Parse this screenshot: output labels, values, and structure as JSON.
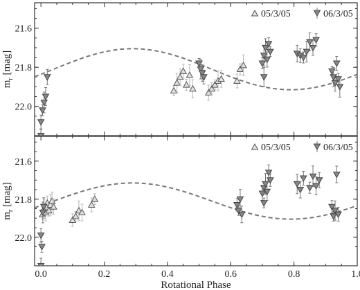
{
  "chart_data": [
    {
      "type": "scatter",
      "title": "",
      "xlabel": "",
      "ylabel": "m",
      "ylabel_sub": "r",
      "ylabel_unit": "[mag]",
      "xlim": [
        -0.02,
        1.0
      ],
      "ylim": [
        22.15,
        21.47
      ],
      "y_inverted": true,
      "xticks": [
        0.0,
        0.2,
        0.4,
        0.6,
        0.8,
        1.0
      ],
      "xtick_labels": [
        "",
        "",
        "",
        "",
        "",
        ""
      ],
      "yticks": [
        21.6,
        21.8,
        22.0
      ],
      "ytick_labels": [
        "21.6",
        "21.8",
        "22.0"
      ],
      "grid": false,
      "legend_position": "top-right",
      "model": {
        "name": "",
        "mean": 21.81,
        "amplitude": 0.105,
        "phase_of_max_brightness": 0.29
      },
      "series": [
        {
          "name": "05/3/05",
          "marker": "triangle-up",
          "points": [
            {
              "x": 0.42,
              "y": 21.92
            },
            {
              "x": 0.43,
              "y": 21.88
            },
            {
              "x": 0.44,
              "y": 21.85
            },
            {
              "x": 0.45,
              "y": 21.82
            },
            {
              "x": 0.46,
              "y": 21.89
            },
            {
              "x": 0.47,
              "y": 21.84
            },
            {
              "x": 0.48,
              "y": 21.91
            },
            {
              "x": 0.53,
              "y": 21.93
            },
            {
              "x": 0.54,
              "y": 21.91
            },
            {
              "x": 0.55,
              "y": 21.89
            },
            {
              "x": 0.56,
              "y": 21.87
            },
            {
              "x": 0.57,
              "y": 21.86
            },
            {
              "x": 0.62,
              "y": 21.87
            },
            {
              "x": 0.63,
              "y": 21.81
            },
            {
              "x": 0.64,
              "y": 21.79
            }
          ]
        },
        {
          "name": "06/3/05",
          "marker": "triangle-down",
          "points": [
            {
              "x": 0.0,
              "y": 22.08
            },
            {
              "x": 0.005,
              "y": 22.02
            },
            {
              "x": 0.01,
              "y": 21.98
            },
            {
              "x": 0.015,
              "y": 21.95
            },
            {
              "x": 0.02,
              "y": 21.85
            },
            {
              "x": 0.0,
              "y": 22.15
            },
            {
              "x": 0.5,
              "y": 21.78
            },
            {
              "x": 0.505,
              "y": 21.81
            },
            {
              "x": 0.51,
              "y": 21.83
            },
            {
              "x": 0.515,
              "y": 21.85
            },
            {
              "x": 0.7,
              "y": 21.78
            },
            {
              "x": 0.705,
              "y": 21.74
            },
            {
              "x": 0.71,
              "y": 21.7
            },
            {
              "x": 0.715,
              "y": 21.76
            },
            {
              "x": 0.72,
              "y": 21.68
            },
            {
              "x": 0.725,
              "y": 21.72
            },
            {
              "x": 0.705,
              "y": 21.85
            },
            {
              "x": 0.81,
              "y": 21.73
            },
            {
              "x": 0.82,
              "y": 21.74
            },
            {
              "x": 0.83,
              "y": 21.75
            },
            {
              "x": 0.84,
              "y": 21.72
            },
            {
              "x": 0.85,
              "y": 21.67
            },
            {
              "x": 0.86,
              "y": 21.7
            },
            {
              "x": 0.87,
              "y": 21.66
            },
            {
              "x": 0.92,
              "y": 21.82
            },
            {
              "x": 0.925,
              "y": 21.85
            },
            {
              "x": 0.93,
              "y": 21.88
            },
            {
              "x": 0.935,
              "y": 21.78
            },
            {
              "x": 0.94,
              "y": 21.86
            },
            {
              "x": 0.945,
              "y": 21.9
            }
          ]
        }
      ]
    },
    {
      "type": "scatter",
      "title": "",
      "xlabel": "Rotational Phase",
      "ylabel": "m",
      "ylabel_sub": "r",
      "ylabel_unit": "[mag]",
      "xlim": [
        -0.02,
        1.0
      ],
      "ylim": [
        22.15,
        21.47
      ],
      "y_inverted": true,
      "xticks": [
        0.0,
        0.2,
        0.4,
        0.6,
        0.8,
        1.0
      ],
      "xtick_labels": [
        "0.0",
        "0.2",
        "0.4",
        "0.6",
        "0.8",
        "1.0"
      ],
      "yticks": [
        21.6,
        21.8,
        22.0
      ],
      "ytick_labels": [
        "21.6",
        "21.8",
        "22.0"
      ],
      "grid": false,
      "legend_position": "top-right",
      "model": {
        "name": "",
        "mean": 21.81,
        "amplitude": 0.095,
        "phase_of_max_brightness": 0.29
      },
      "series": [
        {
          "name": "05/3/05",
          "marker": "triangle-up",
          "points": [
            {
              "x": 0.005,
              "y": 21.88
            },
            {
              "x": 0.01,
              "y": 21.85
            },
            {
              "x": 0.015,
              "y": 21.87
            },
            {
              "x": 0.02,
              "y": 21.82
            },
            {
              "x": 0.025,
              "y": 21.86
            },
            {
              "x": 0.03,
              "y": 21.83
            },
            {
              "x": 0.035,
              "y": 21.81
            },
            {
              "x": 0.04,
              "y": 21.84
            },
            {
              "x": 0.1,
              "y": 21.91
            },
            {
              "x": 0.11,
              "y": 21.89
            },
            {
              "x": 0.12,
              "y": 21.86
            },
            {
              "x": 0.13,
              "y": 21.87
            },
            {
              "x": 0.16,
              "y": 21.83
            },
            {
              "x": 0.17,
              "y": 21.8
            }
          ]
        },
        {
          "name": "06/3/05",
          "marker": "triangle-down",
          "points": [
            {
              "x": 0.0,
              "y": 21.99
            },
            {
              "x": 0.003,
              "y": 22.05
            },
            {
              "x": 0.006,
              "y": 21.87
            },
            {
              "x": 0.009,
              "y": 21.84
            },
            {
              "x": 0.0,
              "y": 22.15
            },
            {
              "x": 0.62,
              "y": 21.83
            },
            {
              "x": 0.625,
              "y": 21.86
            },
            {
              "x": 0.63,
              "y": 21.8
            },
            {
              "x": 0.635,
              "y": 21.88
            },
            {
              "x": 0.7,
              "y": 21.77
            },
            {
              "x": 0.705,
              "y": 21.74
            },
            {
              "x": 0.71,
              "y": 21.72
            },
            {
              "x": 0.715,
              "y": 21.76
            },
            {
              "x": 0.72,
              "y": 21.66
            },
            {
              "x": 0.725,
              "y": 21.7
            },
            {
              "x": 0.705,
              "y": 21.82
            },
            {
              "x": 0.81,
              "y": 21.72
            },
            {
              "x": 0.82,
              "y": 21.75
            },
            {
              "x": 0.83,
              "y": 21.69
            },
            {
              "x": 0.85,
              "y": 21.74
            },
            {
              "x": 0.86,
              "y": 21.68
            },
            {
              "x": 0.87,
              "y": 21.73
            },
            {
              "x": 0.88,
              "y": 21.7
            },
            {
              "x": 0.92,
              "y": 21.84
            },
            {
              "x": 0.925,
              "y": 21.89
            },
            {
              "x": 0.93,
              "y": 21.86
            },
            {
              "x": 0.935,
              "y": 21.67
            },
            {
              "x": 0.94,
              "y": 21.88
            }
          ]
        }
      ]
    }
  ]
}
